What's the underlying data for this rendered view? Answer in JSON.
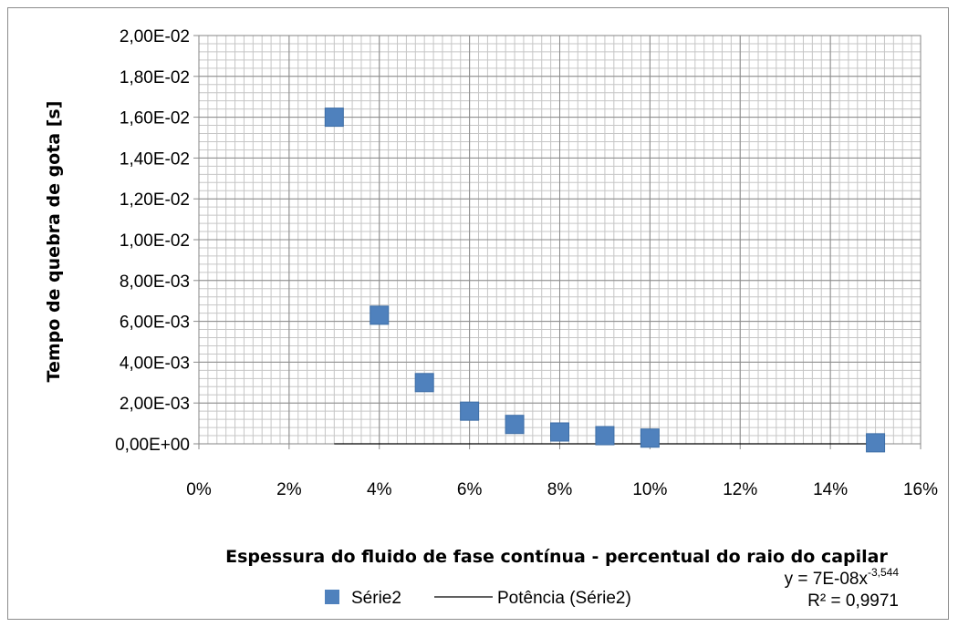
{
  "chart_data": {
    "type": "scatter",
    "xlabel": "Espessura do fluido de fase contínua - percentual do raio do capilar",
    "ylabel": "Tempo de quebra de gota [s]",
    "x_ticks": [
      "0%",
      "2%",
      "4%",
      "6%",
      "8%",
      "10%",
      "12%",
      "14%",
      "16%"
    ],
    "y_ticks": [
      "0,00E+00",
      "2,00E-03",
      "4,00E-03",
      "6,00E-03",
      "8,00E-03",
      "1,00E-02",
      "1,20E-02",
      "1,40E-02",
      "1,60E-02",
      "1,80E-02",
      "2,00E-02"
    ],
    "xlim": [
      0,
      0.16
    ],
    "ylim": [
      0,
      0.02
    ],
    "grid": true,
    "legend_position": "bottom",
    "series": [
      {
        "name": "Série2",
        "marker": "square",
        "color": "#4f81bd",
        "points": [
          [
            0.03,
            0.016
          ],
          [
            0.04,
            0.0063
          ],
          [
            0.05,
            0.003
          ],
          [
            0.06,
            0.0016
          ],
          [
            0.07,
            0.00095
          ],
          [
            0.08,
            0.00058
          ],
          [
            0.09,
            0.0004
          ],
          [
            0.1,
            0.00028
          ],
          [
            0.15,
            5e-05
          ]
        ]
      }
    ],
    "trendline": {
      "name": "Potência (Série2)",
      "type": "power",
      "color": "#000000",
      "coefficient": 7e-08,
      "exponent": -3.544,
      "x_range": [
        0.03,
        0.15
      ],
      "equation_prefix": "y = 7E-08x",
      "equation_exponent": "-3,544",
      "r2_label": "R² = 0,9971"
    }
  }
}
